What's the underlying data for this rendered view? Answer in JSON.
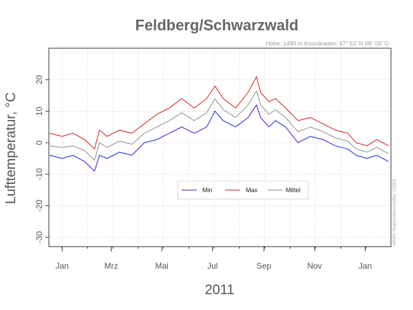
{
  "chart_data": {
    "type": "line",
    "title": "Feldberg/Schwarzwald",
    "subtitle": "Höhe: 1490 m    Koordinaten: 47° 52' N  08° 00' O",
    "side_note": "WMO-Stationskennziffer 10908",
    "xlabel": "2011",
    "ylabel": "Lufttemperatur, °C",
    "ylim": [
      -33,
      30
    ],
    "yticks": [
      -30,
      -20,
      -10,
      0,
      10,
      20
    ],
    "xlim_days": [
      -15,
      397
    ],
    "xticks": [
      {
        "label": "Jan",
        "day": 1
      },
      {
        "label": "Mrz",
        "day": 60
      },
      {
        "label": "Mai",
        "day": 121
      },
      {
        "label": "Jul",
        "day": 182
      },
      {
        "label": "Sep",
        "day": 244
      },
      {
        "label": "Nov",
        "day": 305
      },
      {
        "label": "Jan",
        "day": 366
      }
    ],
    "grid": true,
    "legend_position": "center-right",
    "colors": {
      "min": "#1a1adb",
      "max": "#d01818",
      "mittel": "#8c8c8c"
    },
    "anchor_days": [
      -14,
      1,
      14,
      28,
      40,
      46,
      55,
      70,
      85,
      100,
      115,
      130,
      145,
      160,
      175,
      185,
      195,
      210,
      225,
      235,
      240,
      250,
      258,
      270,
      285,
      300,
      315,
      330,
      345,
      355,
      368,
      380,
      394
    ],
    "series": [
      {
        "name": "Min",
        "values": [
          -4,
          -5,
          -4,
          -6,
          -9,
          -4,
          -5,
          -3,
          -4,
          0,
          1,
          3,
          5,
          3,
          5,
          10,
          7,
          5,
          8,
          12,
          8,
          5,
          7,
          5,
          0,
          2,
          1,
          -1,
          -2,
          -4,
          -5,
          -4,
          -6
        ]
      },
      {
        "name": "Max",
        "values": [
          3,
          2,
          3,
          1,
          -2,
          4,
          2,
          4,
          3,
          6,
          9,
          11,
          14,
          11,
          14,
          18,
          14,
          11,
          16,
          21,
          16,
          13,
          14,
          11,
          7,
          8,
          6,
          4,
          3,
          0,
          -1,
          1,
          -1
        ]
      },
      {
        "name": "Mittel",
        "values": [
          -1,
          -1.5,
          -1,
          -2.5,
          -5.5,
          0,
          -1.5,
          0.5,
          -0.5,
          3,
          5,
          7,
          9.5,
          7,
          9.5,
          14,
          10.5,
          8,
          12,
          16.5,
          12,
          9,
          10.5,
          8,
          3.5,
          5,
          3.5,
          1.5,
          0.5,
          -2,
          -3,
          -1.5,
          -3.5
        ]
      }
    ]
  }
}
